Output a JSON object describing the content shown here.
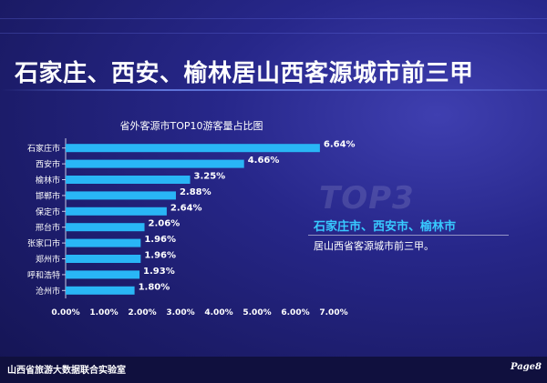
{
  "slide": {
    "title": "石家庄、西安、榆林居山西客源城市前三甲",
    "watermark": "TOP3",
    "callout_title": "石家庄市、西安市、榆林市",
    "callout_text": "居山西省客源城市前三甲。",
    "footer_left": "山西省旅游大数据联合实验室",
    "footer_right": "Page8"
  },
  "chart_data": {
    "type": "bar",
    "orientation": "horizontal",
    "title": "省外客源市TOP10游客量占比图",
    "categories": [
      "石家庄市",
      "西安市",
      "榆林市",
      "邯郸市",
      "保定市",
      "邢台市",
      "张家口市",
      "郑州市",
      "呼和浩特",
      "沧州市"
    ],
    "values": [
      6.64,
      4.66,
      3.25,
      2.88,
      2.64,
      2.06,
      1.96,
      1.96,
      1.93,
      1.8
    ],
    "value_labels": [
      "6.64%",
      "4.66%",
      "3.25%",
      "2.88%",
      "2.64%",
      "2.06%",
      "1.96%",
      "1.96%",
      "1.93%",
      "1.80%"
    ],
    "xlim": [
      0,
      7
    ],
    "xticks": [
      "0.00%",
      "1.00%",
      "2.00%",
      "3.00%",
      "4.00%",
      "5.00%",
      "6.00%",
      "7.00%"
    ],
    "bar_color": "#29b6f6",
    "grid": false
  }
}
